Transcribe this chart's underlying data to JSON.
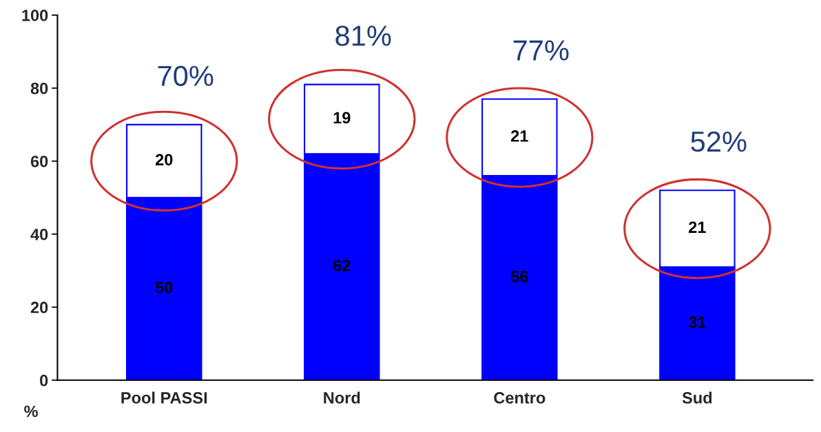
{
  "chart_data": {
    "type": "bar",
    "stacked": true,
    "categories": [
      "Pool PASSI",
      "Nord",
      "Centro",
      "Sud"
    ],
    "series": [
      {
        "color": "#0000ff",
        "values": [
          50,
          62,
          56,
          31
        ]
      },
      {
        "color": "#ffffff",
        "values": [
          20,
          19,
          21,
          21
        ]
      }
    ],
    "data_labels": true,
    "totals": [
      "70%",
      "81%",
      "77%",
      "52%"
    ],
    "ylabel": "%",
    "ylim": [
      0,
      100
    ],
    "yticks": [
      0,
      20,
      40,
      60,
      80,
      100
    ],
    "grid": false,
    "legend": false
  }
}
